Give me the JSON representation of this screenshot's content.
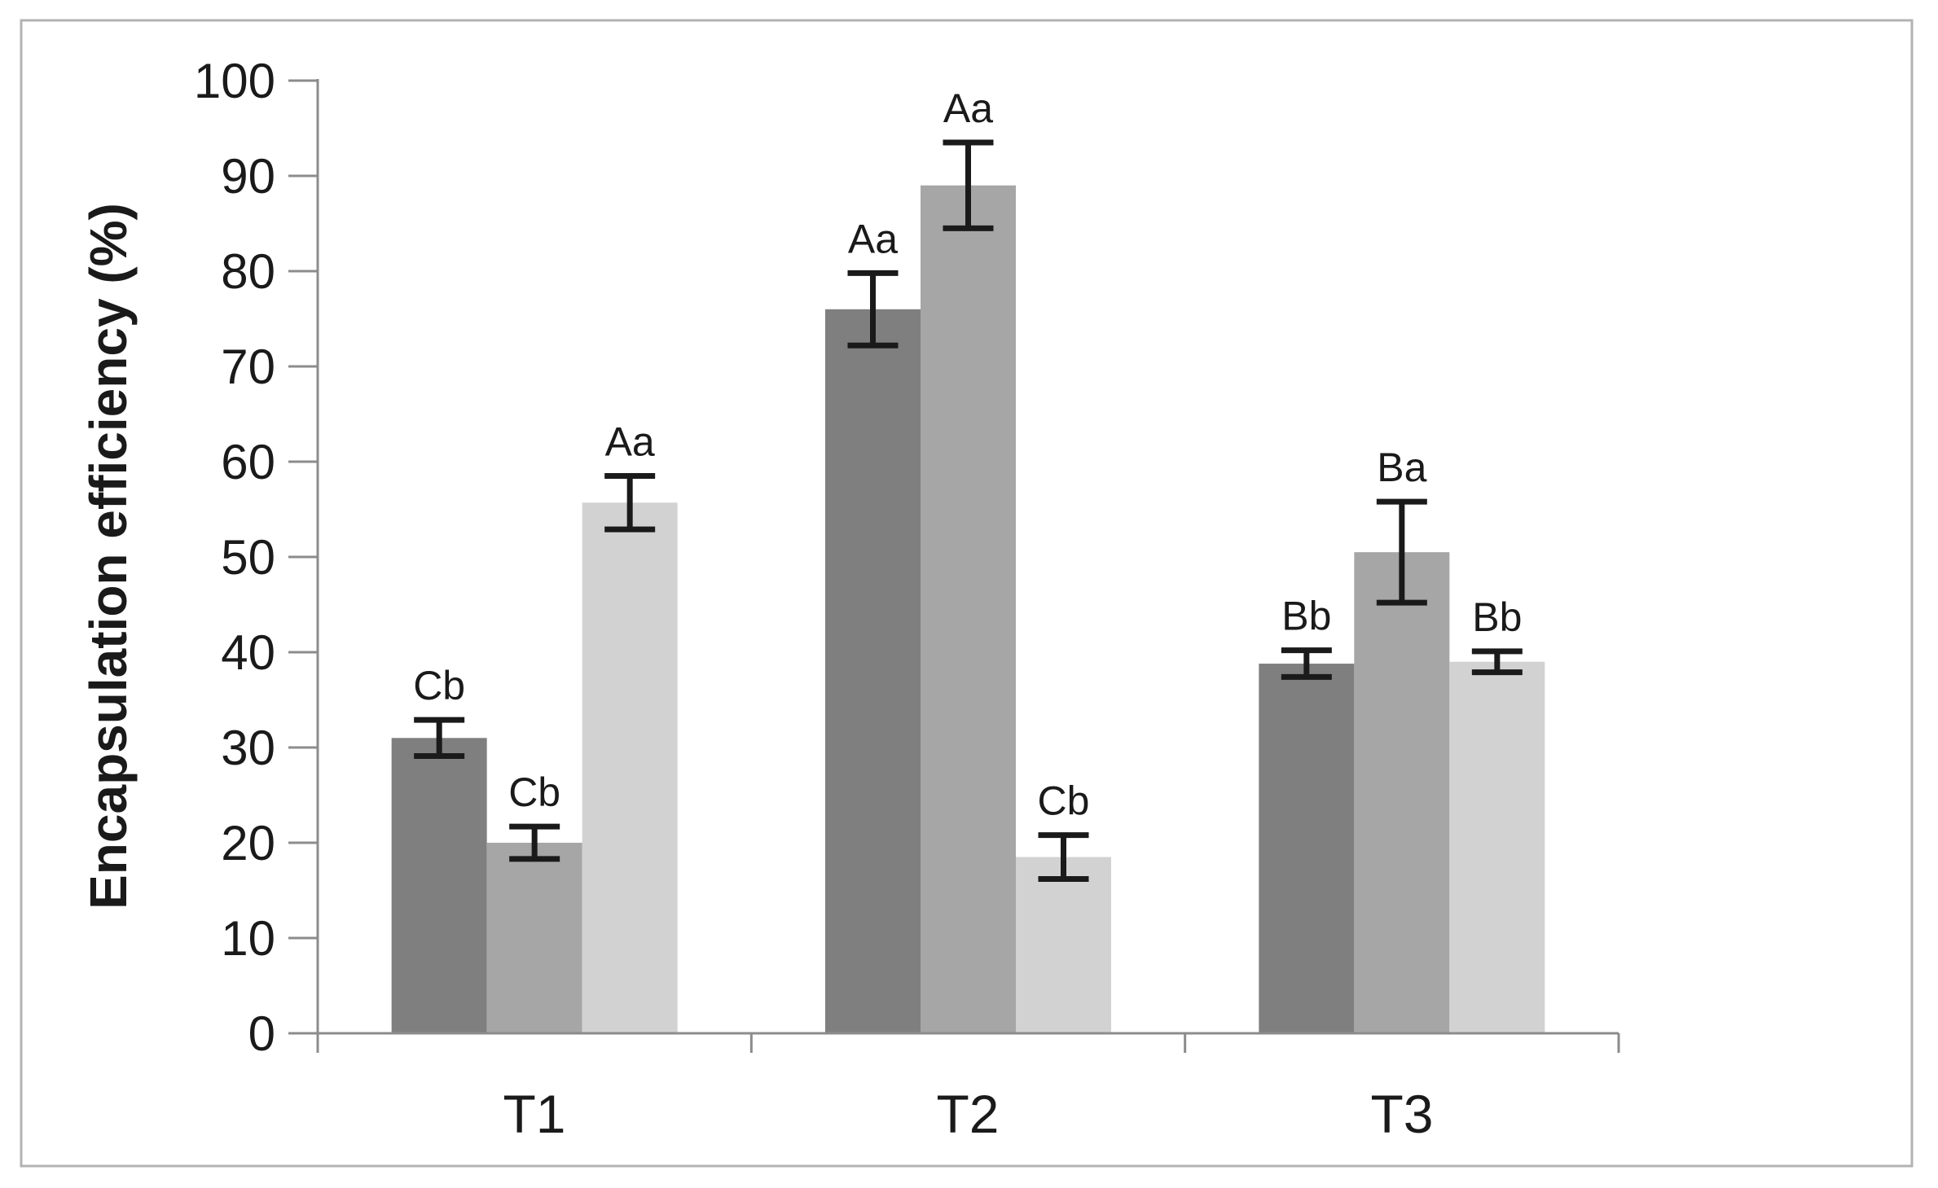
{
  "figure": {
    "background_color": "#ffffff",
    "border_color": "#b3b3b3"
  },
  "chart_data": {
    "type": "bar",
    "title": "",
    "xlabel": "",
    "ylabel": "Encapsulation efficiency (%)",
    "categories": [
      "T1",
      "T2",
      "T3"
    ],
    "ylim": [
      0,
      100
    ],
    "ytick_step": 10,
    "yticks": [
      0,
      10,
      20,
      30,
      40,
      50,
      60,
      70,
      80,
      90,
      100
    ],
    "grid": false,
    "legend_position": "none",
    "axis_color": "#8c8c8c",
    "error_bar_color": "#1a1a1a",
    "text_color": "#1a1a1a",
    "series": [
      {
        "name": "series-dark",
        "color": "#7f7f7f",
        "values": [
          31.0,
          76.0,
          38.8
        ],
        "errors": [
          1.9,
          3.8,
          1.4
        ],
        "bar_labels": [
          "Cb",
          "Aa",
          "Bb"
        ]
      },
      {
        "name": "series-medium",
        "color": "#a6a6a6",
        "values": [
          20.0,
          89.0,
          50.5
        ],
        "errors": [
          1.7,
          4.5,
          5.3
        ],
        "bar_labels": [
          "Cb",
          "Aa",
          "Ba"
        ]
      },
      {
        "name": "series-light",
        "color": "#d2d2d2",
        "values": [
          55.7,
          18.5,
          39.0
        ],
        "errors": [
          2.8,
          2.3,
          1.1
        ],
        "bar_labels": [
          "Aa",
          "Cb",
          "Bb"
        ]
      }
    ]
  }
}
